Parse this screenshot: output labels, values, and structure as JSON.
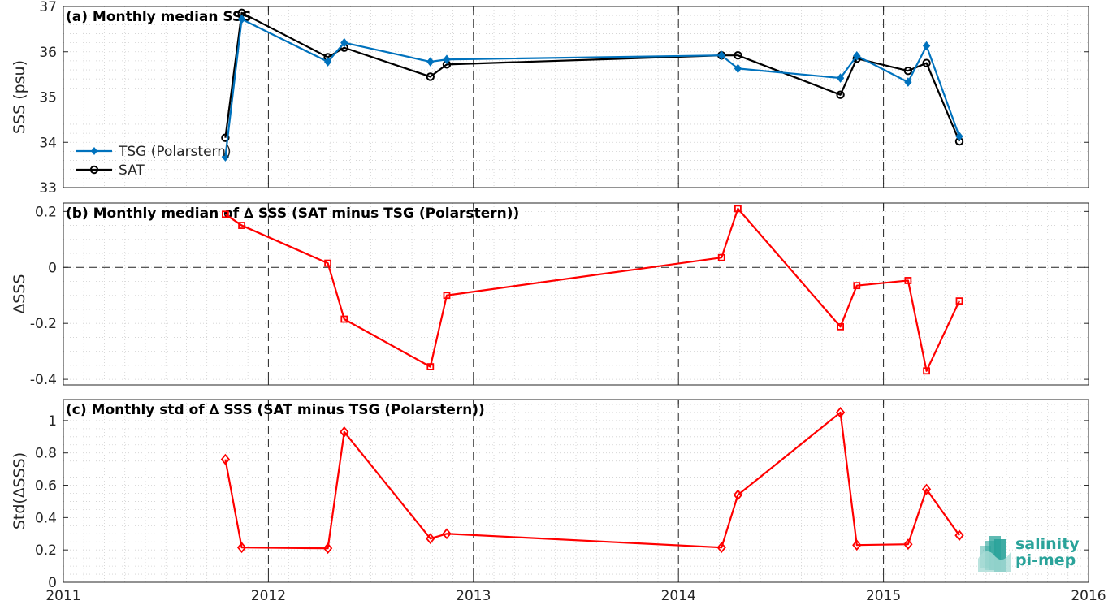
{
  "chart_data": [
    {
      "type": "line",
      "title": "(a) Monthly median SSS",
      "ylabel": "SSS (psu)",
      "xlim": [
        2011,
        2016
      ],
      "ylim": [
        33,
        37
      ],
      "yticks": [
        "33",
        "34",
        "35",
        "36",
        "37"
      ],
      "grid": true,
      "legend_position": "bottom-left",
      "series": [
        {
          "name": "TSG (Polarstern)",
          "color": "#0072bd",
          "marker": "diamond-filled",
          "x": [
            2011.79,
            2011.87,
            2012.29,
            2012.37,
            2012.79,
            2012.87,
            2014.21,
            2014.29,
            2014.79,
            2014.87,
            2015.12,
            2015.21,
            2015.37
          ],
          "y": [
            33.68,
            36.72,
            35.78,
            36.2,
            35.78,
            35.83,
            35.92,
            35.63,
            35.42,
            35.91,
            35.33,
            36.13,
            34.13
          ]
        },
        {
          "name": "SAT",
          "color": "#000000",
          "marker": "circle-open",
          "x": [
            2011.79,
            2011.87,
            2012.29,
            2012.37,
            2012.79,
            2012.87,
            2014.21,
            2014.29,
            2014.79,
            2014.87,
            2015.12,
            2015.21,
            2015.37
          ],
          "y": [
            34.1,
            36.86,
            35.88,
            36.09,
            35.45,
            35.72,
            35.92,
            35.92,
            35.05,
            35.85,
            35.58,
            35.75,
            34.02
          ]
        }
      ]
    },
    {
      "type": "line",
      "title": "(b) Monthly median of ∆ SSS (SAT minus TSG (Polarstern))",
      "ylabel": "∆SSS",
      "xlim": [
        2011,
        2016
      ],
      "ylim": [
        -0.42,
        0.23
      ],
      "yticks": [
        "-0.4",
        "-0.2",
        "0",
        "0.2"
      ],
      "grid": true,
      "zero_line": true,
      "series": [
        {
          "color": "#ff0000",
          "marker": "square-open",
          "x": [
            2011.79,
            2011.87,
            2012.29,
            2012.37,
            2012.79,
            2012.87,
            2014.21,
            2014.29,
            2014.79,
            2014.87,
            2015.12,
            2015.21,
            2015.37
          ],
          "y": [
            0.19,
            0.15,
            0.015,
            -0.185,
            -0.355,
            -0.1,
            0.035,
            0.21,
            -0.212,
            -0.065,
            -0.047,
            -0.37,
            -0.12
          ]
        }
      ]
    },
    {
      "type": "line",
      "title": "(c) Monthly std of ∆ SSS (SAT minus TSG (Polarstern))",
      "ylabel": "Std(∆SSS)",
      "xlabel": "",
      "xlim": [
        2011,
        2016
      ],
      "ylim": [
        0,
        1.13
      ],
      "yticks": [
        "0",
        "0.2",
        "0.4",
        "0.6",
        "0.8",
        "1"
      ],
      "xticks": [
        "2011",
        "2012",
        "2013",
        "2014",
        "2015",
        "2016"
      ],
      "grid": true,
      "series": [
        {
          "color": "#ff0000",
          "marker": "diamond-open",
          "x": [
            2011.79,
            2011.87,
            2012.29,
            2012.37,
            2012.79,
            2012.87,
            2014.21,
            2014.29,
            2014.79,
            2014.87,
            2015.12,
            2015.21,
            2015.37
          ],
          "y": [
            0.76,
            0.215,
            0.21,
            0.93,
            0.27,
            0.3,
            0.215,
            0.54,
            1.05,
            0.23,
            0.235,
            0.575,
            0.29
          ]
        }
      ]
    }
  ],
  "logo": {
    "line1": "salinity",
    "line2": "pi-mep",
    "color": "#2aa39a"
  }
}
